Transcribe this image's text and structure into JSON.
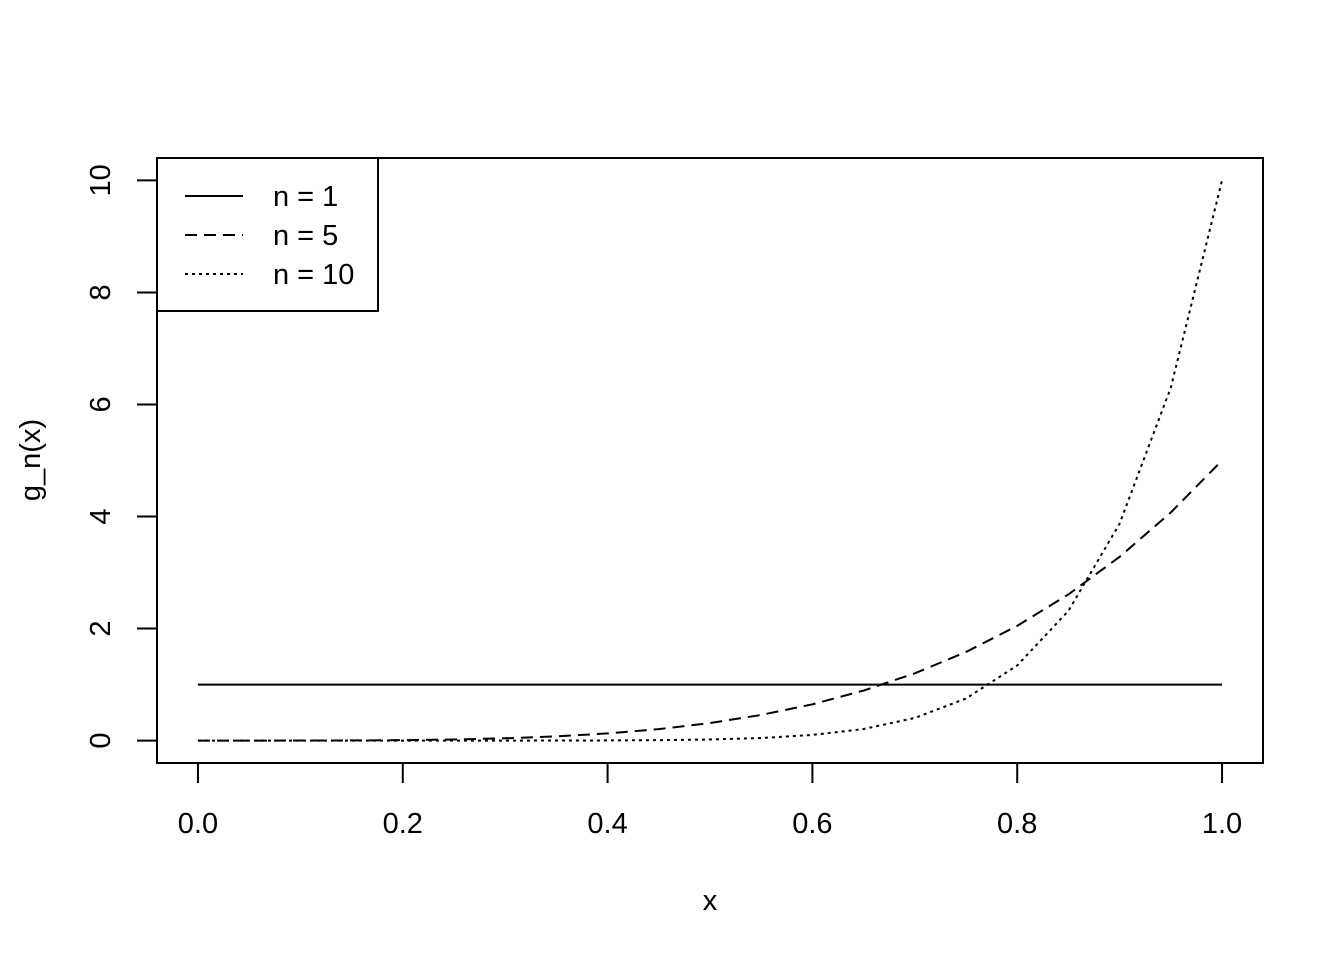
{
  "chart_data": {
    "type": "line",
    "xlabel": "x",
    "ylabel": "g_n(x)",
    "x": [
      0,
      0.05,
      0.1,
      0.15,
      0.2,
      0.25,
      0.3,
      0.35,
      0.4,
      0.45,
      0.5,
      0.55,
      0.6,
      0.65,
      0.7,
      0.75,
      0.8,
      0.85,
      0.9,
      0.95,
      1
    ],
    "series": [
      {
        "name": "n = 1",
        "color": "#000000",
        "dash": "solid",
        "values": [
          1,
          1,
          1,
          1,
          1,
          1,
          1,
          1,
          1,
          1,
          1,
          1,
          1,
          1,
          1,
          1,
          1,
          1,
          1,
          1,
          1
        ]
      },
      {
        "name": "n = 5",
        "color": "#000000",
        "dash": "dashed",
        "values": [
          0,
          0,
          0.001,
          0.003,
          0.008,
          0.02,
          0.041,
          0.075,
          0.128,
          0.205,
          0.313,
          0.458,
          0.648,
          0.893,
          1.201,
          1.582,
          2.048,
          2.61,
          3.281,
          4.073,
          5
        ]
      },
      {
        "name": "n = 10",
        "color": "#000000",
        "dash": "dotted",
        "values": [
          0,
          0,
          0,
          0,
          0,
          0,
          0,
          0.001,
          0.003,
          0.008,
          0.02,
          0.046,
          0.101,
          0.207,
          0.404,
          0.751,
          1.342,
          2.316,
          3.874,
          6.302,
          10
        ]
      }
    ],
    "xlim": [
      -0.04,
      1.04
    ],
    "ylim": [
      -0.4,
      10.4
    ],
    "xticks": [
      {
        "value": 0,
        "label": "0.0"
      },
      0.2,
      0.4,
      0.6,
      0.8,
      {
        "value": 1,
        "label": "1.0"
      }
    ],
    "yticks": [
      0,
      2,
      4,
      6,
      8,
      10
    ],
    "legend": "topleft"
  }
}
